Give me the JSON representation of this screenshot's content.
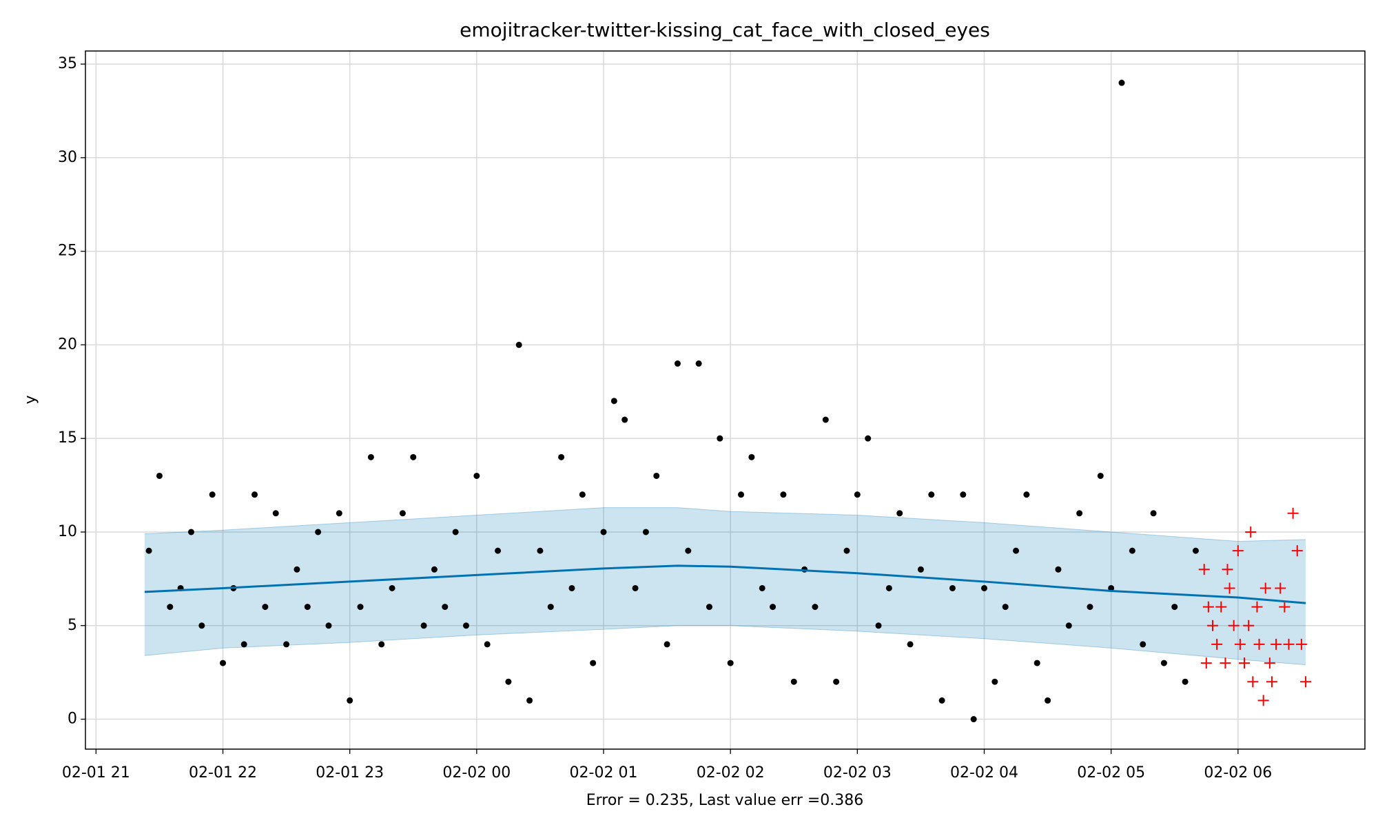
{
  "chart_data": {
    "type": "scatter",
    "title": "emojitracker-twitter-kissing_cat_face_with_closed_eyes",
    "xlabel": "Error = 0.235, Last value err =0.386",
    "ylabel": "y",
    "xlim": [
      "02-01 20:55",
      "02-02 07:00"
    ],
    "ylim": [
      -1.6,
      35.7
    ],
    "xticks": [
      "02-01 21",
      "02-01 22",
      "02-01 23",
      "02-02 00",
      "02-02 01",
      "02-02 02",
      "02-02 03",
      "02-02 04",
      "02-02 05",
      "02-02 06"
    ],
    "yticks": [
      0,
      5,
      10,
      15,
      20,
      25,
      30,
      35
    ],
    "grid": true,
    "series": [
      {
        "marker": "o",
        "color": "#000000",
        "x": [
          "02-01 21:25",
          "02-01 21:30",
          "02-01 21:35",
          "02-01 21:40",
          "02-01 21:45",
          "02-01 21:50",
          "02-01 21:55",
          "02-01 22:00",
          "02-01 22:05",
          "02-01 22:10",
          "02-01 22:15",
          "02-01 22:20",
          "02-01 22:25",
          "02-01 22:30",
          "02-01 22:35",
          "02-01 22:40",
          "02-01 22:45",
          "02-01 22:50",
          "02-01 22:55",
          "02-01 23:00",
          "02-01 23:05",
          "02-01 23:10",
          "02-01 23:15",
          "02-01 23:20",
          "02-01 23:25",
          "02-01 23:30",
          "02-01 23:35",
          "02-01 23:40",
          "02-01 23:45",
          "02-01 23:50",
          "02-01 23:55",
          "02-02 00:00",
          "02-02 00:05",
          "02-02 00:10",
          "02-02 00:15",
          "02-02 00:20",
          "02-02 00:25",
          "02-02 00:30",
          "02-02 00:35",
          "02-02 00:40",
          "02-02 00:45",
          "02-02 00:50",
          "02-02 00:55",
          "02-02 01:00",
          "02-02 01:05",
          "02-02 01:10",
          "02-02 01:15",
          "02-02 01:20",
          "02-02 01:25",
          "02-02 01:30",
          "02-02 01:35",
          "02-02 01:40",
          "02-02 01:45",
          "02-02 01:50",
          "02-02 01:55",
          "02-02 02:00",
          "02-02 02:05",
          "02-02 02:10",
          "02-02 02:15",
          "02-02 02:20",
          "02-02 02:25",
          "02-02 02:30",
          "02-02 02:35",
          "02-02 02:40",
          "02-02 02:45",
          "02-02 02:50",
          "02-02 02:55",
          "02-02 03:00",
          "02-02 03:05",
          "02-02 03:10",
          "02-02 03:15",
          "02-02 03:20",
          "02-02 03:25",
          "02-02 03:30",
          "02-02 03:35",
          "02-02 03:40",
          "02-02 03:45",
          "02-02 03:50",
          "02-02 03:55",
          "02-02 04:00",
          "02-02 04:05",
          "02-02 04:10",
          "02-02 04:15",
          "02-02 04:20",
          "02-02 04:25",
          "02-02 04:30",
          "02-02 04:35",
          "02-02 04:40",
          "02-02 04:45",
          "02-02 04:50",
          "02-02 04:55",
          "02-02 05:00",
          "02-02 05:05",
          "02-02 05:10",
          "02-02 05:15",
          "02-02 05:20",
          "02-02 05:25",
          "02-02 05:30",
          "02-02 05:35",
          "02-02 05:40"
        ],
        "values": [
          9,
          13,
          6,
          7,
          10,
          5,
          12,
          3,
          7,
          4,
          12,
          6,
          11,
          4,
          8,
          6,
          10,
          5,
          11,
          1,
          6,
          14,
          4,
          7,
          11,
          14,
          5,
          8,
          6,
          10,
          5,
          13,
          4,
          9,
          2,
          20,
          1,
          9,
          6,
          14,
          7,
          12,
          3,
          10,
          17,
          16,
          7,
          10,
          13,
          4,
          19,
          9,
          19,
          6,
          15,
          3,
          12,
          14,
          7,
          6,
          12,
          2,
          8,
          6,
          16,
          2,
          9,
          12,
          15,
          5,
          7,
          11,
          4,
          8,
          12,
          1,
          7,
          12,
          0,
          7,
          2,
          6,
          9,
          12,
          3,
          1,
          8,
          5,
          11,
          6,
          13,
          7,
          34,
          9,
          4,
          11,
          3,
          6,
          2,
          9
        ]
      },
      {
        "marker": "+",
        "color": "#ff0000",
        "x": [
          "02-02 05:44",
          "02-02 05:45",
          "02-02 05:46",
          "02-02 05:48",
          "02-02 05:50",
          "02-02 05:52",
          "02-02 05:54",
          "02-02 05:55",
          "02-02 05:56",
          "02-02 05:58",
          "02-02 06:00",
          "02-02 06:01",
          "02-02 06:03",
          "02-02 06:05",
          "02-02 06:06",
          "02-02 06:07",
          "02-02 06:09",
          "02-02 06:10",
          "02-02 06:12",
          "02-02 06:13",
          "02-02 06:15",
          "02-02 06:16",
          "02-02 06:18",
          "02-02 06:20",
          "02-02 06:22",
          "02-02 06:24",
          "02-02 06:26",
          "02-02 06:28",
          "02-02 06:30",
          "02-02 06:32"
        ],
        "values": [
          8,
          3,
          6,
          5,
          4,
          6,
          3,
          8,
          7,
          5,
          9,
          4,
          3,
          5,
          10,
          2,
          6,
          4,
          1,
          7,
          3,
          2,
          4,
          7,
          6,
          4,
          11,
          9,
          4,
          2
        ]
      }
    ],
    "forecast": {
      "color": "#0072b2",
      "x": [
        "02-01 21:23",
        "02-01 22:00",
        "02-01 23:00",
        "02-02 00:00",
        "02-02 01:00",
        "02-02 01:35",
        "02-02 02:00",
        "02-02 03:00",
        "02-02 04:00",
        "02-02 05:00",
        "02-02 06:00",
        "02-02 06:32"
      ],
      "values": [
        6.8,
        7.0,
        7.35,
        7.7,
        8.05,
        8.2,
        8.15,
        7.8,
        7.35,
        6.85,
        6.5,
        6.2
      ],
      "upper": [
        9.9,
        10.1,
        10.5,
        10.9,
        11.3,
        11.3,
        11.1,
        10.9,
        10.5,
        10.0,
        9.5,
        9.6
      ],
      "lower": [
        3.4,
        3.8,
        4.1,
        4.5,
        4.8,
        5.0,
        5.0,
        4.7,
        4.3,
        3.8,
        3.2,
        2.9
      ]
    }
  }
}
